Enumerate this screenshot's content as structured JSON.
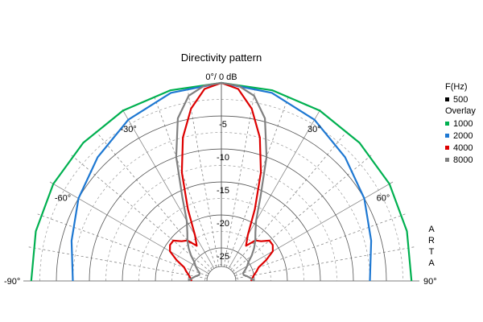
{
  "chart_data": {
    "type": "polar",
    "title": "Directivity pattern",
    "center_label": "0°/ 0 dB",
    "radial_range_db": [
      -30,
      0
    ],
    "radial_ticks": [
      "-5",
      "-10",
      "-15",
      "-20",
      "-25"
    ],
    "radial_tick_values": [
      -5,
      -10,
      -15,
      -20,
      -25
    ],
    "angle_range_deg": [
      -90,
      90
    ],
    "angle_ticks": [
      {
        "deg": -90,
        "label": "-90°"
      },
      {
        "deg": -60,
        "label": "-60°"
      },
      {
        "deg": -30,
        "label": "-30°"
      },
      {
        "deg": 30,
        "label": "30°"
      },
      {
        "deg": 60,
        "label": "60°"
      },
      {
        "deg": 90,
        "label": "90°"
      }
    ],
    "grid": true,
    "legend": {
      "placement": "right",
      "header": "F(Hz)",
      "overlay_header": "Overlay",
      "primary": {
        "name": "500",
        "color": "#000000"
      }
    },
    "series": [
      {
        "name": "1000",
        "color": "#00b050",
        "angles": [
          0,
          15,
          30,
          45,
          60,
          75,
          90
        ],
        "values": [
          0,
          -0.1,
          -0.2,
          -0.4,
          -0.6,
          -0.9,
          -1.2
        ]
      },
      {
        "name": "2000",
        "color": "#1e78d2",
        "angles": [
          0,
          15,
          30,
          45,
          60,
          75,
          90
        ],
        "values": [
          0,
          -0.5,
          -1.8,
          -3.5,
          -5.0,
          -6.5,
          -7.5
        ]
      },
      {
        "name": "4000",
        "color": "#dd0000",
        "angles": [
          0,
          5,
          10,
          15,
          20,
          25,
          30,
          35,
          40,
          45,
          50,
          55,
          60,
          65,
          70,
          75,
          80,
          85,
          90
        ],
        "values": [
          0,
          -0.8,
          -3.5,
          -7.5,
          -12.5,
          -18.0,
          -22.0,
          -23.5,
          -22.0,
          -21.5,
          -20.5,
          -20.5,
          -21.0,
          -22.5,
          -24.0,
          -24.5,
          -25.0,
          -25.3,
          -25.5
        ]
      },
      {
        "name": "8000",
        "color": "#808080",
        "angles": [
          0,
          5,
          10,
          15,
          20,
          25,
          30,
          35,
          40,
          45,
          50,
          55,
          60,
          65,
          70,
          75,
          80,
          85,
          90
        ],
        "values": [
          0,
          -0.3,
          -1.5,
          -4.5,
          -10.0,
          -16.0,
          -19.5,
          -21.0,
          -22.0,
          -23.0,
          -24.0,
          -25.0,
          -25.5,
          -26.0,
          -26.5,
          -26.5,
          -26.0,
          -25.5,
          -25.0
        ]
      }
    ]
  },
  "side_label": [
    "A",
    "R",
    "T",
    "A"
  ]
}
